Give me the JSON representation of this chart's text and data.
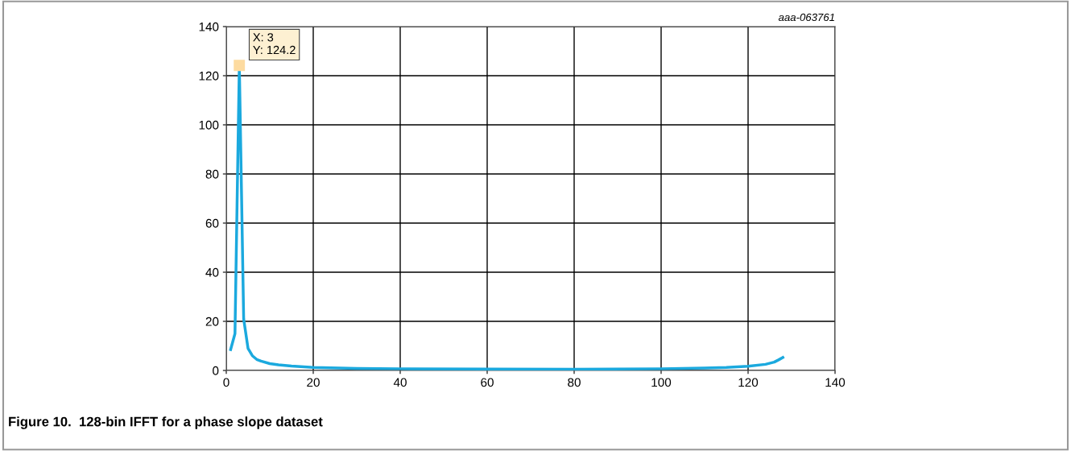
{
  "chart_data": {
    "type": "line",
    "title": "Figure 10.  128-bin IFFT for a phase slope dataset",
    "x": [
      1,
      2,
      3,
      4,
      5,
      6,
      7,
      8,
      10,
      12,
      15,
      20,
      30,
      40,
      60,
      80,
      100,
      110,
      115,
      120,
      124,
      126,
      127,
      128
    ],
    "series": [
      {
        "color": "#1ba9de",
        "values": [
          8.5,
          15,
          124.2,
          21,
          9,
          6,
          4.5,
          3.8,
          2.8,
          2.3,
          1.8,
          1.2,
          0.8,
          0.7,
          0.6,
          0.5,
          0.7,
          1.0,
          1.2,
          1.7,
          2.5,
          3.4,
          4.3,
          5.3
        ]
      }
    ],
    "xlim": [
      0,
      140
    ],
    "xticks": [
      0,
      20,
      40,
      60,
      80,
      100,
      120,
      140
    ],
    "ylim": [
      0,
      140
    ],
    "yticks": [
      0,
      20,
      40,
      60,
      80,
      100,
      120,
      140
    ],
    "grid": true,
    "marker": "none",
    "line_style": "solid",
    "annotations": [
      {
        "text": "X: 3\nY: 124.2",
        "x": 3,
        "y": 124.2
      },
      "aaa-063761"
    ]
  }
}
